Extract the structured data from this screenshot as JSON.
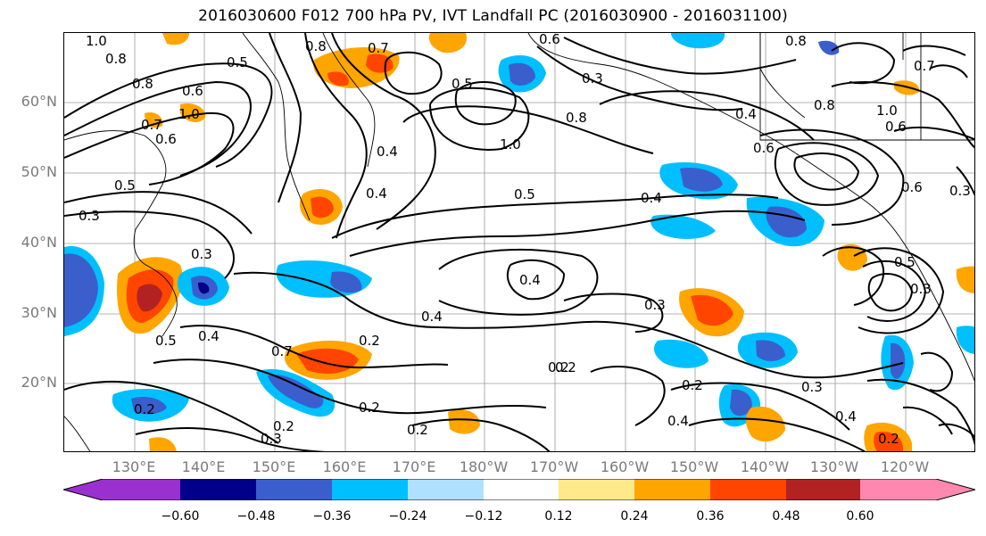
{
  "title": "2016030600 F012 700 hPa PV, IVT Landfall PC (2016030900 - 2016031100)",
  "lat_labels": [
    "60°N",
    "50°N",
    "40°N",
    "30°N",
    "20°N"
  ],
  "lon_labels": [
    "130°E",
    "140°E",
    "150°E",
    "160°E",
    "170°E",
    "180°W",
    "170°W",
    "160°W",
    "150°W",
    "140°W",
    "130°W",
    "120°W"
  ],
  "colorbar": {
    "ticks": [
      "−0.60",
      "−0.48",
      "−0.36",
      "−0.24",
      "−0.12",
      "0.12",
      "0.24",
      "0.36",
      "0.48",
      "0.60"
    ],
    "colors": [
      "#9b30d0",
      "#00008b",
      "#3a5fcd",
      "#00bfff",
      "#b0e0ff",
      "#ffffff",
      "#ffe98a",
      "#ffa500",
      "#ff4500",
      "#b22222",
      "#ff88b0"
    ]
  },
  "contour_labels": {
    "a": "1.0",
    "b": "0.8",
    "c": "0.5",
    "d": "0.8",
    "e": "0.7",
    "f": "0.6",
    "g": "0.8",
    "h": "1.0",
    "i": "0.7",
    "j": "0.6",
    "k": "0.3",
    "l": "0.5",
    "m": "0.3",
    "n": "0.4",
    "o": "0.4",
    "p": "0.5",
    "q": "1.0",
    "r": "0.8",
    "s": "0.5",
    "t": "0.4",
    "u": "0.4",
    "v": "0.4",
    "w": "0.2",
    "x": "0.7",
    "y": "0.2",
    "z": "0.2",
    "aa": "0.2",
    "ab": "0.3",
    "ac": "0.2",
    "ad": "0.2",
    "ae": "0.2",
    "af": "0.3",
    "ag": "0.3",
    "ah": "0.4",
    "ai": "0.2",
    "aj": "0.6",
    "ak": "0.8",
    "al": "0.4",
    "am": "0.5",
    "an": "0.3",
    "ao": "0.6",
    "ap": "0.3",
    "aq": "0.8",
    "ar": "1.0",
    "as": "0.6",
    "at": "0.7",
    "au": "0.6",
    "av": "0.4",
    "aw": "0.4",
    "ax": "0.2",
    "ay": "0.5",
    "az": "0.3"
  }
}
